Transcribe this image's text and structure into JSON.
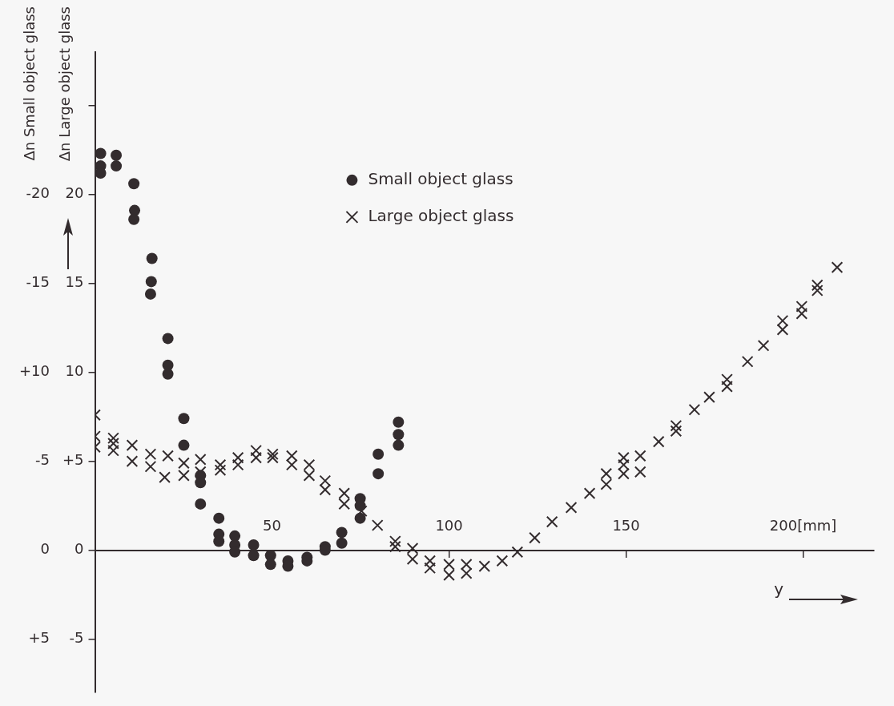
{
  "chart_data": {
    "type": "scatter",
    "ylabel": "Δn Large object glass",
    "y2label": "Δn Small object glass",
    "xlabel": "y",
    "xlim": [
      0,
      220
    ],
    "xticks": [
      50,
      100,
      150,
      {
        "value": 200,
        "label": "200[mm]"
      }
    ],
    "ylim": [
      -8,
      28
    ],
    "yticks": [
      {
        "value": -5,
        "label": "-5"
      },
      0,
      {
        "value": 5,
        "label": "+5"
      },
      10,
      15,
      20,
      {
        "value": 25,
        "label": null
      }
    ],
    "y2lim": [
      8,
      -28
    ],
    "y2ticks": [
      {
        "value": 5,
        "label": "+5"
      },
      0,
      -5,
      {
        "value": -10,
        "label": "+10"
      },
      -15,
      -20
    ],
    "grid": false,
    "legend": "top",
    "series": [
      {
        "name": "Small object glass",
        "color": "#332c2e",
        "marker": "circle",
        "axis": "y2",
        "x": [
          1.6,
          1.6,
          1.6,
          6,
          6,
          11,
          11.2,
          11,
          16.1,
          15.9,
          15.7,
          20.6,
          20.6,
          20.6,
          25.1,
          25.1,
          29.8,
          29.8,
          29.8,
          35,
          35,
          35,
          39.5,
          39.5,
          39.5,
          44.8,
          44.8,
          49.6,
          49.6,
          54.5,
          54.5,
          59.9,
          59.9,
          65,
          65,
          69.7,
          69.7,
          74.9,
          74.9,
          74.9,
          80,
          80,
          85.7,
          85.7,
          85.7
        ],
        "values": [
          -22.3,
          -21.6,
          -21.2,
          -22.2,
          -21.6,
          -20.6,
          -19.1,
          -18.6,
          -16.4,
          -15.1,
          -14.4,
          -11.9,
          -10.4,
          -9.9,
          -7.4,
          -5.9,
          -4.2,
          -3.8,
          -2.6,
          -1.8,
          -0.9,
          -0.5,
          -0.8,
          -0.3,
          0.1,
          -0.3,
          0.3,
          0.3,
          0.8,
          0.6,
          0.9,
          0.4,
          0.6,
          -0.2,
          0,
          -0.4,
          -1.0,
          -1.8,
          -2.9,
          -2.5,
          -5.4,
          -4.3,
          -7.2,
          -6.5,
          -5.9
        ]
      },
      {
        "name": "Large object glass",
        "color": "#332c2e",
        "marker": "cross",
        "x": [
          0,
          0,
          0,
          5.2,
          5.2,
          5.2,
          10.5,
          10.5,
          15.7,
          15.7,
          19.7,
          20.6,
          25.1,
          25.1,
          29.8,
          29.8,
          35.4,
          35.4,
          40.4,
          40.4,
          45.5,
          45.5,
          50.2,
          50.2,
          55.6,
          55.6,
          60.5,
          60.5,
          65,
          65,
          70.4,
          70.4,
          75.3,
          79.8,
          84.8,
          84.8,
          89.7,
          89.7,
          94.6,
          94.6,
          100,
          100,
          104.9,
          104.9,
          110,
          115,
          119.3,
          124.2,
          129.1,
          134.5,
          139.7,
          144.4,
          144.4,
          149.3,
          149.3,
          149.3,
          154,
          154,
          159.2,
          164.1,
          164.1,
          169.3,
          173.5,
          178.5,
          178.5,
          184.3,
          188.8,
          194.2,
          194.2,
          199.6,
          199.6,
          204,
          204,
          209.6
        ],
        "values": [
          7.6,
          6.4,
          5.8,
          6.3,
          5.6,
          6,
          5.9,
          5,
          5.4,
          4.7,
          4.1,
          5.3,
          4.9,
          4.2,
          5.1,
          4.4,
          4.8,
          4.5,
          5.2,
          4.8,
          5.6,
          5.2,
          5.4,
          5.2,
          5.3,
          4.8,
          4.8,
          4.2,
          3.9,
          3.4,
          3.2,
          2.6,
          2.2,
          1.4,
          0.5,
          0.2,
          0.1,
          -0.5,
          -0.6,
          -1.0,
          -0.8,
          -1.4,
          -0.8,
          -1.3,
          -0.9,
          -0.6,
          -0.1,
          0.7,
          1.6,
          2.4,
          3.2,
          4.3,
          3.7,
          5.2,
          4.8,
          4.3,
          5.3,
          4.4,
          6.1,
          7.0,
          6.7,
          7.9,
          8.6,
          9.6,
          9.2,
          10.6,
          11.5,
          12.9,
          12.4,
          13.7,
          13.3,
          14.9,
          14.6,
          15.9
        ]
      }
    ]
  }
}
